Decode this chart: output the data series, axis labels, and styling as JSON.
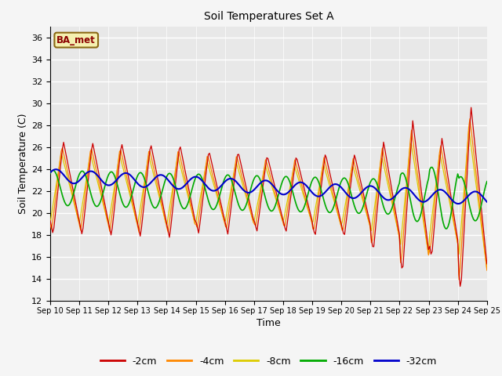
{
  "title": "Soil Temperatures Set A",
  "xlabel": "Time",
  "ylabel": "Soil Temperature (C)",
  "ylim": [
    12,
    37
  ],
  "yticks": [
    12,
    14,
    16,
    18,
    20,
    22,
    24,
    26,
    28,
    30,
    32,
    34,
    36
  ],
  "annotation": "BA_met",
  "colors": {
    "-2cm": "#cc0000",
    "-4cm": "#ff8800",
    "-8cm": "#ddcc00",
    "-16cm": "#00aa00",
    "-32cm": "#0000cc"
  },
  "legend_labels": [
    "-2cm",
    "-4cm",
    "-8cm",
    "-16cm",
    "-32cm"
  ],
  "bg_color": "#e8e8e8",
  "plot_bg": "#e8e8e8",
  "grid_color": "#ffffff",
  "n_days": 15,
  "start_day": 10
}
